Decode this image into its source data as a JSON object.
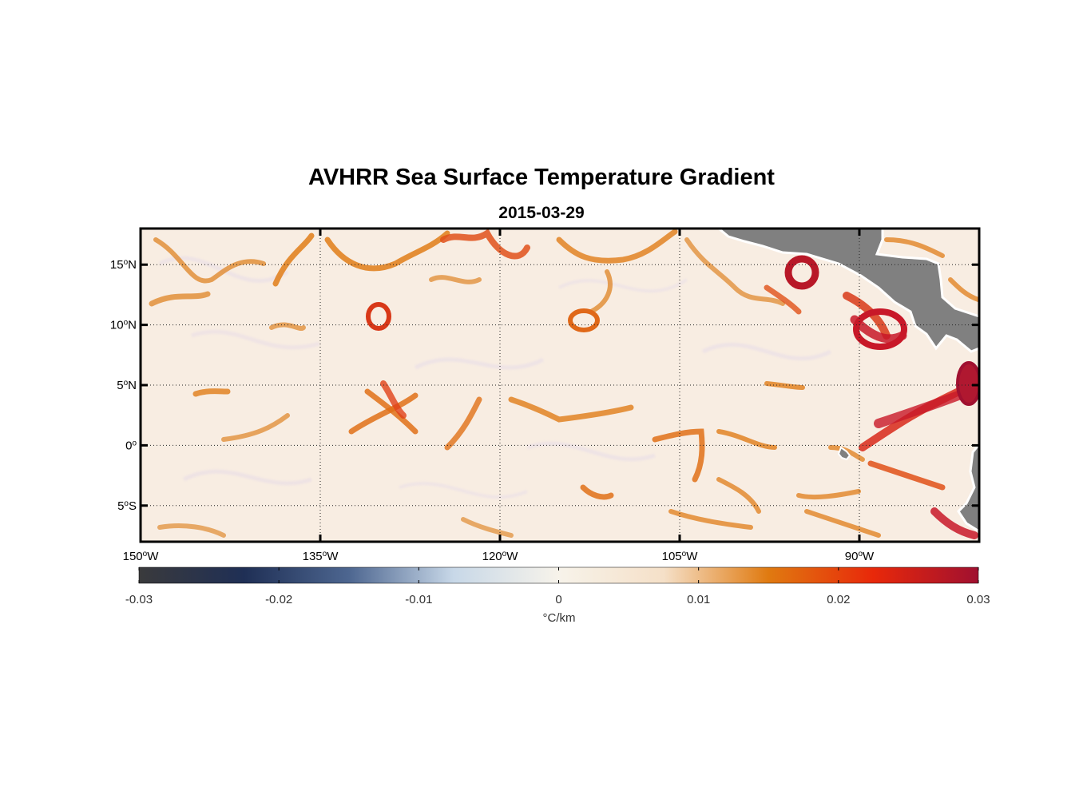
{
  "title": "AVHRR Sea Surface Temperature Gradient",
  "subtitle": "2015-03-29",
  "map": {
    "lon_range": [
      -150,
      -80
    ],
    "lat_range": [
      -8,
      18
    ],
    "lon_ticks": [
      {
        "value": -150,
        "num": "150",
        "hem": "W"
      },
      {
        "value": -135,
        "num": "135",
        "hem": "W"
      },
      {
        "value": -120,
        "num": "120",
        "hem": "W"
      },
      {
        "value": -105,
        "num": "105",
        "hem": "W"
      },
      {
        "value": -90,
        "num": "90",
        "hem": "W"
      }
    ],
    "lat_ticks": [
      {
        "value": 15,
        "num": "15",
        "hem": "N"
      },
      {
        "value": 10,
        "num": "10",
        "hem": "N"
      },
      {
        "value": 5,
        "num": "5",
        "hem": "N"
      },
      {
        "value": 0,
        "num": "0",
        "hem": ""
      },
      {
        "value": -5,
        "num": "5",
        "hem": "S"
      }
    ],
    "grid": "dotted",
    "land_color": "#808080",
    "background_color": "#f7ece0"
  },
  "colorbar": {
    "range": [
      -0.03,
      0.03
    ],
    "tick_labels": [
      "-0.03",
      "-0.02",
      "-0.01",
      "0",
      "0.01",
      "0.02",
      "0.03"
    ],
    "unit_label": "°C/km",
    "colors": [
      "#3a3a3c",
      "#1f2f55",
      "#4d6690",
      "#c8d8e8",
      "#f7f3ea",
      "#f5e0c8",
      "#e07a10",
      "#e8280a",
      "#a01030"
    ]
  },
  "features": [
    {
      "name": "eddy-ring-133W-11N",
      "lon": -133.2,
      "lat": 10.8,
      "strength": 0.018
    },
    {
      "name": "eddy-ring-113W-10N",
      "lon": -113.6,
      "lat": 10.4,
      "strength": 0.013
    },
    {
      "name": "eddy-ring-95W-14N",
      "lon": -95.5,
      "lat": 14.5,
      "strength": 0.03
    },
    {
      "name": "front-87W-10N",
      "lon": -87.8,
      "lat": 10.0,
      "strength": 0.028
    },
    {
      "name": "front-82W-4N",
      "lon": -82.5,
      "lat": 3.5,
      "strength": 0.027
    }
  ]
}
